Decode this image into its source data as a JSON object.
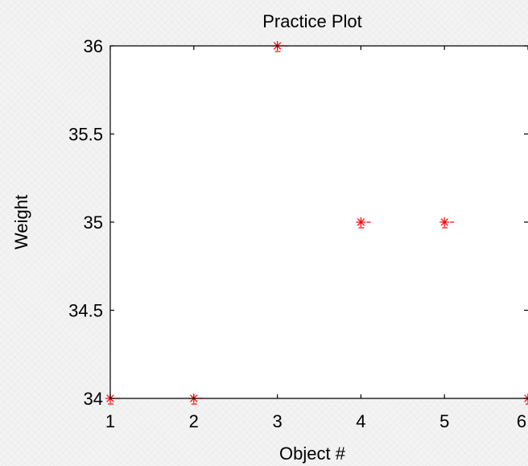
{
  "chart_data": {
    "type": "scatter",
    "title": "Practice Plot",
    "xlabel": "Object #",
    "ylabel": "Weight",
    "xlim": [
      1,
      6
    ],
    "ylim": [
      34,
      36
    ],
    "xticks": [
      "1",
      "2",
      "3",
      "4",
      "5",
      "6"
    ],
    "yticks": [
      "34",
      "34.5",
      "35",
      "35.5",
      "36"
    ],
    "grid": false,
    "marker": "asterisk",
    "series": [
      {
        "x": [
          1,
          2,
          3,
          4,
          5,
          6
        ],
        "y": [
          34,
          34,
          36,
          35,
          35,
          34
        ],
        "color": "#ff0000"
      }
    ]
  }
}
